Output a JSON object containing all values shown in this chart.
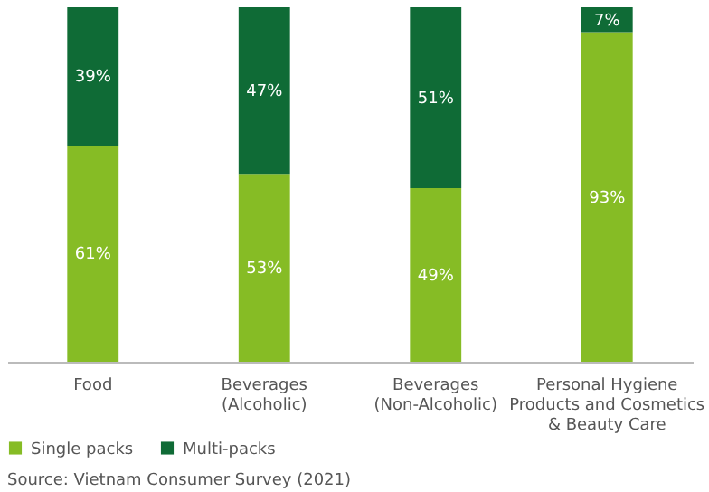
{
  "chart_data": {
    "type": "bar",
    "stacked": true,
    "tick_labels": "x",
    "categories": [
      "Food",
      "Beverages\n(Alcoholic)",
      "Beverages\n(Non-Alcoholic)",
      "Personal Hygiene\nProducts and Cosmetics\n& Beauty Care"
    ],
    "series": [
      {
        "name": "Single packs",
        "color": "#86bc25",
        "values": [
          61,
          53,
          49,
          93
        ],
        "value_labels": [
          "61%",
          "53%",
          "49%",
          "93%"
        ]
      },
      {
        "name": "Multi-packs",
        "color": "#0f6b36",
        "values": [
          39,
          47,
          51,
          7
        ],
        "value_labels": [
          "39%",
          "47%",
          "51%",
          "7%"
        ]
      }
    ],
    "legend": "bottom left",
    "annotations": [
      "Source: Vietnam Consumer Survey (2021)"
    ]
  }
}
